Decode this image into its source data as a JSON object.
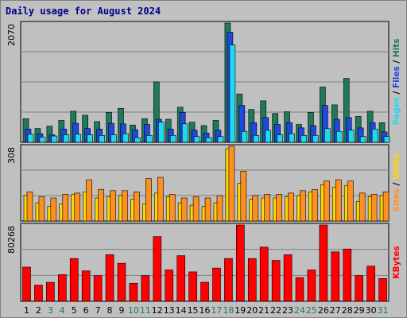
{
  "chart_data": [
    {
      "type": "bar",
      "title": "Daily usage for August 2024",
      "panel": "pages-files-hits",
      "y_max_label": "2070",
      "ylim": [
        0,
        2070
      ],
      "categories": [
        "1",
        "2",
        "3",
        "4",
        "5",
        "6",
        "7",
        "8",
        "9",
        "10",
        "11",
        "12",
        "13",
        "14",
        "15",
        "16",
        "17",
        "18",
        "19",
        "20",
        "21",
        "22",
        "23",
        "24",
        "25",
        "26",
        "27",
        "28",
        "29",
        "30",
        "31"
      ],
      "series": [
        {
          "name": "Hits",
          "color": "#1e7a5a",
          "values": [
            410,
            240,
            280,
            380,
            540,
            470,
            360,
            520,
            590,
            300,
            410,
            1050,
            400,
            610,
            350,
            290,
            380,
            2070,
            840,
            570,
            720,
            500,
            530,
            310,
            520,
            960,
            650,
            1110,
            450,
            540,
            340
          ]
        },
        {
          "name": "Files",
          "color": "#1f48e0",
          "values": [
            230,
            150,
            130,
            230,
            330,
            240,
            230,
            330,
            320,
            220,
            310,
            400,
            230,
            520,
            210,
            160,
            210,
            1910,
            640,
            340,
            430,
            310,
            340,
            250,
            290,
            640,
            400,
            430,
            250,
            340,
            180
          ]
        },
        {
          "name": "Pages",
          "color": "#20d8f0",
          "values": [
            140,
            90,
            110,
            130,
            140,
            130,
            120,
            130,
            150,
            80,
            120,
            350,
            120,
            320,
            100,
            80,
            100,
            1690,
            190,
            120,
            210,
            130,
            150,
            120,
            120,
            240,
            190,
            210,
            100,
            230,
            100
          ]
        }
      ]
    },
    {
      "type": "bar",
      "panel": "sites-visits",
      "y_max_label": "308",
      "ylim": [
        0,
        308
      ],
      "categories": [
        "1",
        "2",
        "3",
        "4",
        "5",
        "6",
        "7",
        "8",
        "9",
        "10",
        "11",
        "12",
        "13",
        "14",
        "15",
        "16",
        "17",
        "18",
        "19",
        "20",
        "21",
        "22",
        "23",
        "24",
        "25",
        "26",
        "27",
        "28",
        "29",
        "30",
        "31"
      ],
      "series": [
        {
          "name": "Visits",
          "color": "#ffd700",
          "values": [
            105,
            75,
            60,
            70,
            110,
            120,
            95,
            100,
            105,
            90,
            70,
            115,
            100,
            75,
            65,
            60,
            75,
            298,
            155,
            90,
            95,
            95,
            100,
            105,
            120,
            150,
            140,
            145,
            80,
            100,
            105
          ]
        },
        {
          "name": "Sites",
          "color": "#ff9020",
          "values": [
            120,
            100,
            95,
            110,
            115,
            170,
            130,
            125,
            125,
            120,
            175,
            180,
            110,
            95,
            100,
            95,
            105,
            308,
            205,
            105,
            110,
            110,
            115,
            125,
            130,
            165,
            170,
            165,
            115,
            110,
            120
          ]
        }
      ]
    },
    {
      "type": "bar",
      "panel": "kbytes",
      "y_max_label": "80268",
      "ylim": [
        0,
        80268
      ],
      "categories": [
        "1",
        "2",
        "3",
        "4",
        "5",
        "6",
        "7",
        "8",
        "9",
        "10",
        "11",
        "12",
        "13",
        "14",
        "15",
        "16",
        "17",
        "18",
        "19",
        "20",
        "21",
        "22",
        "23",
        "24",
        "25",
        "26",
        "27",
        "28",
        "29",
        "30",
        "31"
      ],
      "series": [
        {
          "name": "KBytes",
          "color": "#ff0000",
          "values": [
            36000,
            17000,
            20000,
            28000,
            45000,
            32000,
            27000,
            49000,
            40000,
            19000,
            27000,
            68000,
            33000,
            48000,
            31000,
            20000,
            35000,
            45000,
            80268,
            45000,
            57000,
            43000,
            49000,
            25000,
            33000,
            80268,
            52000,
            55000,
            27000,
            37000,
            24000
          ]
        }
      ]
    }
  ],
  "right_labels": {
    "top": [
      {
        "text": "Pages",
        "color": "#20d8f0"
      },
      {
        "text": " / ",
        "color": "#000000"
      },
      {
        "text": "Files",
        "color": "#1f48e0"
      },
      {
        "text": " / ",
        "color": "#000000"
      },
      {
        "text": "Hits",
        "color": "#1e7a5a"
      }
    ],
    "middle": [
      {
        "text": "Sites",
        "color": "#ff9020"
      },
      {
        "text": " / ",
        "color": "#000000"
      },
      {
        "text": "Visits",
        "color": "#ffd700"
      }
    ],
    "bottom": [
      {
        "text": "KBytes",
        "color": "#ff0000"
      }
    ]
  },
  "x_labels": {
    "weekend_color": "#1e7a5a",
    "weekday_color": "#000000",
    "weekend_days": [
      "3",
      "4",
      "10",
      "11",
      "17",
      "18",
      "24",
      "25",
      "31"
    ]
  }
}
